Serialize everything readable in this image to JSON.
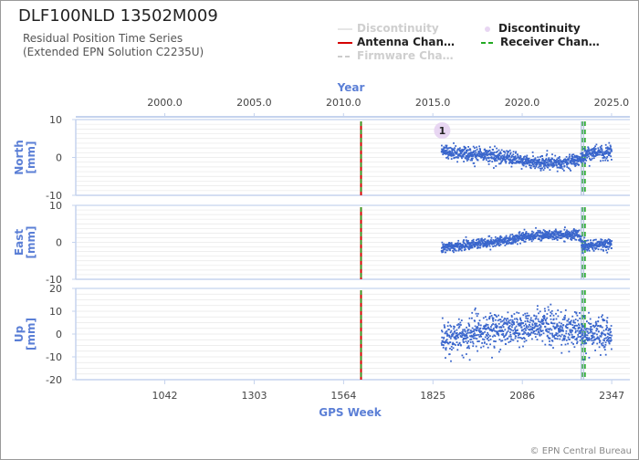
{
  "header": {
    "title": "DLF100NLD 13502M009",
    "subtitle_line1": "Residual Position Time Series",
    "subtitle_line2": "(Extended EPN Solution C2235U)"
  },
  "legend": [
    {
      "label": "Discontinuity",
      "style": "line",
      "color": "#e6e6e6",
      "dim": true
    },
    {
      "label": "Discontinuity",
      "style": "dot",
      "color": "#e8d6f2",
      "dim": false
    },
    {
      "label": "Antenna Chan…",
      "style": "line",
      "color": "#d40000",
      "dim": false
    },
    {
      "label": "Receiver Chan…",
      "style": "dash",
      "color": "#22aa22",
      "dim": false
    },
    {
      "label": "Firmware Cha…",
      "style": "dash",
      "color": "#cccccc",
      "dim": true
    }
  ],
  "credit": "© EPN Central Bureau",
  "colors": {
    "points": "#3a66cc",
    "axis": "#5b7fd6",
    "axis_line": "#c5d3ee",
    "grid": "#e8e8e8",
    "antenna": "#d40000",
    "receiver": "#22aa22",
    "discontinuity_marker": "#e8d6f2"
  },
  "chart_data": {
    "type": "scatter",
    "top_axis": {
      "label": "Year",
      "ticks": [
        2000.0,
        2005.0,
        2010.0,
        2015.0,
        2020.0,
        2025.0
      ],
      "tick_labels": [
        "2000.0",
        "2005.0",
        "2010.0",
        "2015.0",
        "2020.0",
        "2025.0"
      ]
    },
    "bottom_axis": {
      "label": "GPS Week",
      "range": [
        782,
        2400
      ],
      "ticks": [
        1042,
        1303,
        1564,
        1825,
        2086,
        2347
      ],
      "tick_labels": [
        "1042",
        "1303",
        "1564",
        "1825",
        "2086",
        "2347"
      ]
    },
    "year_to_week": {
      "year": 2000.0,
      "week": 1042,
      "weeks_per_year": 52.18
    },
    "data_span_weeks": [
      1850,
      2347
    ],
    "events": [
      {
        "type": "antenna_change",
        "gps_week": 1615
      },
      {
        "type": "receiver_change",
        "gps_week": 1615
      },
      {
        "type": "receiver_change",
        "gps_week": 2262
      },
      {
        "type": "receiver_change",
        "gps_week": 2269
      },
      {
        "type": "discontinuity",
        "gps_week": 2258
      },
      {
        "type": "discontinuity",
        "gps_week": 2265
      }
    ],
    "discontinuity_labels": [
      {
        "label": "1",
        "gps_week": 1852,
        "panel": "north"
      }
    ],
    "panels": [
      {
        "key": "north",
        "ylabel": "North\n[mm]",
        "ylim": [
          -10,
          10
        ],
        "yticks": [
          10,
          0,
          -10
        ],
        "tick_labels": [
          "10",
          "0",
          "-10"
        ],
        "trend": [
          [
            1850,
            2
          ],
          [
            1900,
            1
          ],
          [
            2000,
            0.5
          ],
          [
            2100,
            -1
          ],
          [
            2200,
            -1.5
          ],
          [
            2250,
            -0.5
          ],
          [
            2262,
            0
          ],
          [
            2300,
            1.5
          ],
          [
            2347,
            1.2
          ]
        ],
        "noise_std": 0.9
      },
      {
        "key": "east",
        "ylabel": "East\n[mm]",
        "ylim": [
          -10,
          10
        ],
        "yticks": [
          10,
          0,
          -10
        ],
        "tick_labels": [
          "10",
          "0",
          "-10"
        ],
        "trend": [
          [
            1850,
            -1.5
          ],
          [
            1950,
            -0.5
          ],
          [
            2030,
            0.2
          ],
          [
            2086,
            1.5
          ],
          [
            2150,
            2
          ],
          [
            2250,
            2.2
          ],
          [
            2262,
            -0.8
          ],
          [
            2300,
            -0.8
          ],
          [
            2347,
            -0.5
          ]
        ],
        "noise_std": 0.7
      },
      {
        "key": "up",
        "ylabel": "Up\n[mm]",
        "ylim": [
          -20,
          20
        ],
        "yticks": [
          20,
          10,
          0,
          -10,
          -20
        ],
        "tick_labels": [
          "20",
          "10",
          "0",
          "-10",
          "-20"
        ],
        "trend": [
          [
            1850,
            -2
          ],
          [
            1900,
            -1
          ],
          [
            1950,
            1
          ],
          [
            2000,
            2
          ],
          [
            2086,
            3
          ],
          [
            2150,
            3.5
          ],
          [
            2250,
            2
          ],
          [
            2262,
            -0.5
          ],
          [
            2300,
            0
          ],
          [
            2347,
            -1
          ]
        ],
        "noise_std": 3.6
      }
    ]
  }
}
